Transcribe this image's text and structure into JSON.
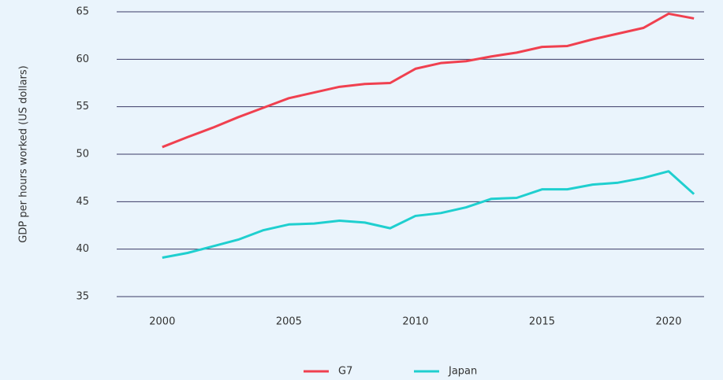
{
  "chart_data": {
    "type": "line",
    "y_label": "GDP per hours worked (US dollars)",
    "x": [
      2000,
      2001,
      2002,
      2003,
      2004,
      2005,
      2006,
      2007,
      2008,
      2009,
      2010,
      2011,
      2012,
      2013,
      2014,
      2015,
      2016,
      2017,
      2018,
      2019,
      2020,
      2021
    ],
    "series": [
      {
        "name": "G7",
        "color": "#f0404f",
        "values": [
          50.75,
          51.8,
          52.8,
          53.9,
          54.9,
          55.9,
          56.5,
          57.1,
          57.4,
          57.5,
          59.0,
          59.6,
          59.8,
          60.3,
          60.7,
          61.3,
          61.4,
          62.1,
          62.7,
          63.3,
          64.8,
          64.3
        ]
      },
      {
        "name": "Japan",
        "color": "#1fcfcf",
        "values": [
          39.1,
          39.6,
          40.3,
          41.0,
          42.0,
          42.6,
          42.7,
          43.0,
          42.8,
          42.2,
          43.5,
          43.8,
          44.4,
          45.3,
          45.4,
          46.3,
          46.3,
          46.8,
          47.0,
          47.5,
          48.2,
          45.8
        ]
      }
    ],
    "xlim": [
      1998.2,
      2021.4
    ],
    "xticks": [
      2000,
      2005,
      2010,
      2015,
      2020
    ],
    "ylim": [
      35,
      65
    ],
    "yticks": [
      35,
      40,
      45,
      50,
      55,
      60,
      65
    ],
    "grid": true,
    "legend": "bottom"
  }
}
